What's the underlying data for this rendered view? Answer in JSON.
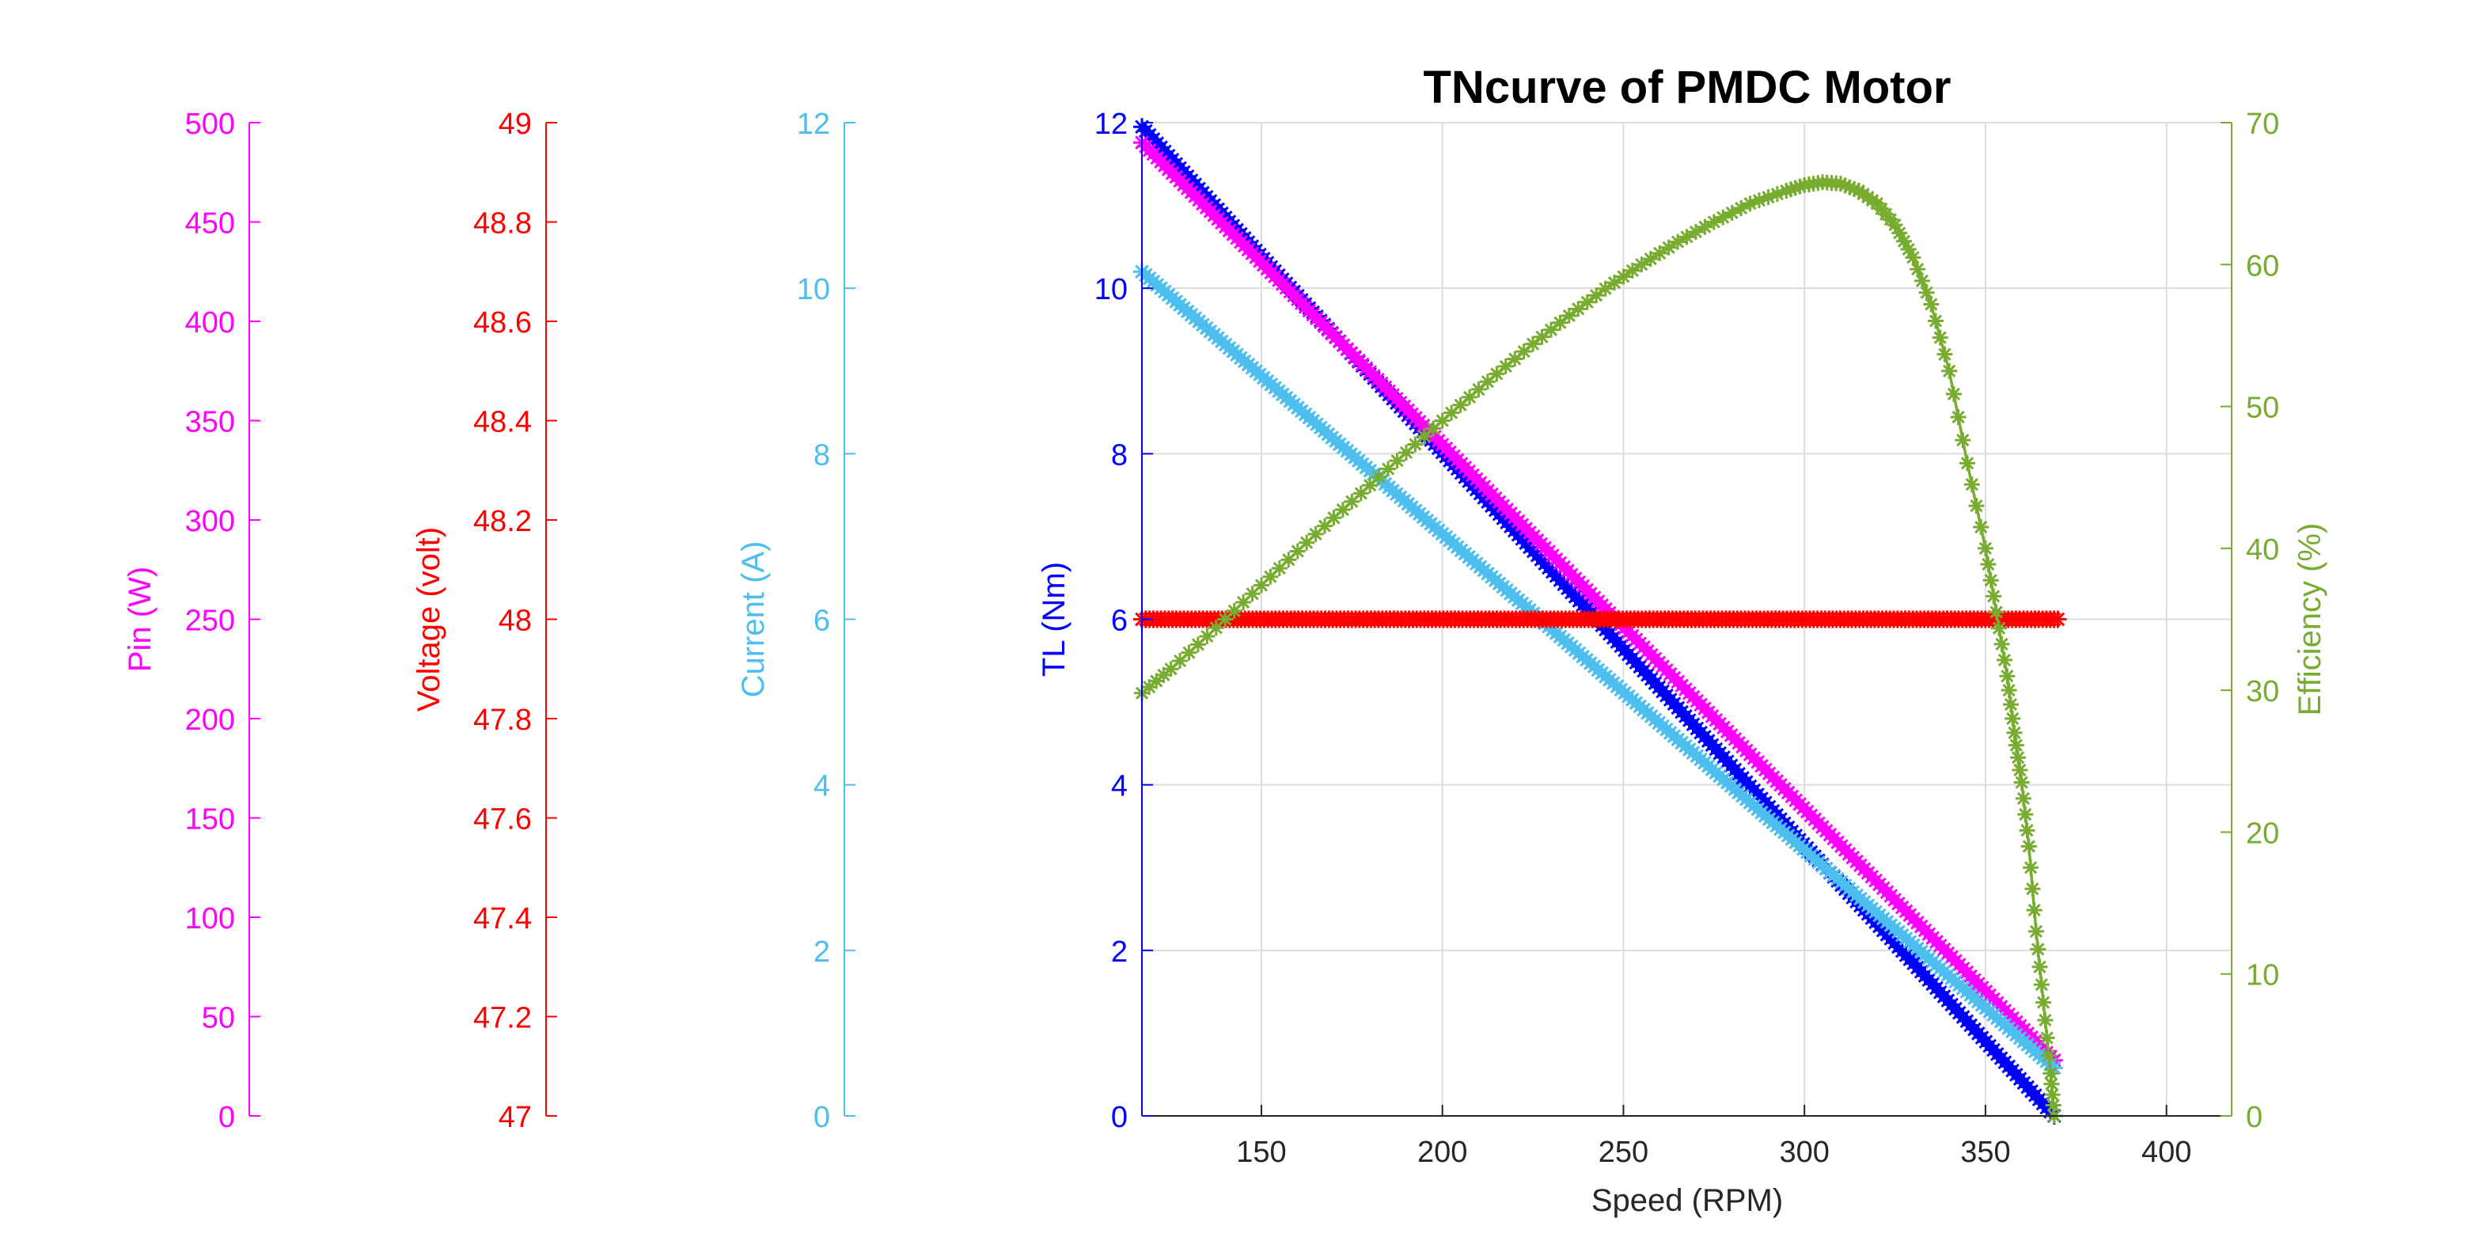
{
  "chart_data": {
    "type": "line",
    "title": "TNcurve of PMDC Motor",
    "xlabel": "Speed (RPM)",
    "xlim": [
      117,
      418
    ],
    "xticks": [
      150,
      200,
      250,
      300,
      350,
      400
    ],
    "grid": true,
    "axes": [
      {
        "id": "pin",
        "label": "Pin (W)",
        "color": "#FF00FF",
        "ylim": [
          0,
          500
        ],
        "ticks": [
          0,
          50,
          100,
          150,
          200,
          250,
          300,
          350,
          400,
          450,
          500
        ]
      },
      {
        "id": "voltage",
        "label": "Voltage (volt)",
        "color": "#FF0000",
        "ylim": [
          47,
          49
        ],
        "ticks": [
          "47",
          "47.2",
          "47.4",
          "47.6",
          "47.8",
          "48",
          "48.2",
          "48.4",
          "48.6",
          "48.8",
          "49"
        ]
      },
      {
        "id": "current",
        "label": "Current (A)",
        "color": "#4DBEEE",
        "ylim": [
          0,
          12
        ],
        "ticks": [
          0,
          2,
          4,
          6,
          8,
          10,
          12
        ]
      },
      {
        "id": "torque",
        "label": "TL (Nm)",
        "color": "#0000FF",
        "ylim": [
          0,
          12
        ],
        "ticks": [
          0,
          2,
          4,
          6,
          8,
          10,
          12
        ]
      },
      {
        "id": "efficiency",
        "label": "Efficiency (%)",
        "color": "#77AC30",
        "ylim": [
          0,
          70
        ],
        "ticks": [
          0,
          10,
          20,
          30,
          40,
          50,
          60,
          70
        ]
      }
    ],
    "series": [
      {
        "axis": "torque",
        "color": "#0000FF",
        "marker": "*",
        "dense": true,
        "x": [
          117,
          369
        ],
        "y": [
          11.95,
          0
        ]
      },
      {
        "axis": "pin",
        "color": "#FF00FF",
        "marker": "*",
        "dense": true,
        "x": [
          117,
          369
        ],
        "y": [
          490,
          28
        ]
      },
      {
        "axis": "current",
        "color": "#4DBEEE",
        "marker": "*",
        "dense": true,
        "x": [
          117,
          369
        ],
        "y": [
          10.2,
          0.58
        ]
      },
      {
        "axis": "voltage",
        "color": "#FF0000",
        "marker": "*",
        "dense": true,
        "x": [
          117,
          370
        ],
        "y": [
          48,
          48
        ]
      },
      {
        "axis": "efficiency",
        "color": "#77AC30",
        "marker": "*",
        "dense": false,
        "x": [
          117,
          125,
          135,
          145,
          155,
          165,
          175,
          185,
          195,
          205,
          215,
          225,
          235,
          245,
          255,
          265,
          275,
          285,
          295,
          300,
          305,
          310,
          315,
          320,
          325,
          330,
          335,
          340,
          345,
          350,
          353,
          356,
          358,
          360,
          362,
          364,
          366,
          368,
          369
        ],
        "y": [
          29.8,
          31.5,
          33.8,
          36.2,
          38.6,
          41.0,
          43.3,
          45.6,
          47.9,
          50.1,
          52.3,
          54.4,
          56.4,
          58.3,
          60.0,
          61.6,
          63.0,
          64.3,
          65.2,
          65.6,
          65.8,
          65.7,
          65.2,
          64.3,
          62.8,
          60.5,
          57.2,
          52.5,
          46.0,
          40.0,
          35.5,
          31.0,
          27.0,
          23.5,
          19.0,
          13.0,
          8.0,
          3.0,
          0
        ]
      }
    ]
  }
}
